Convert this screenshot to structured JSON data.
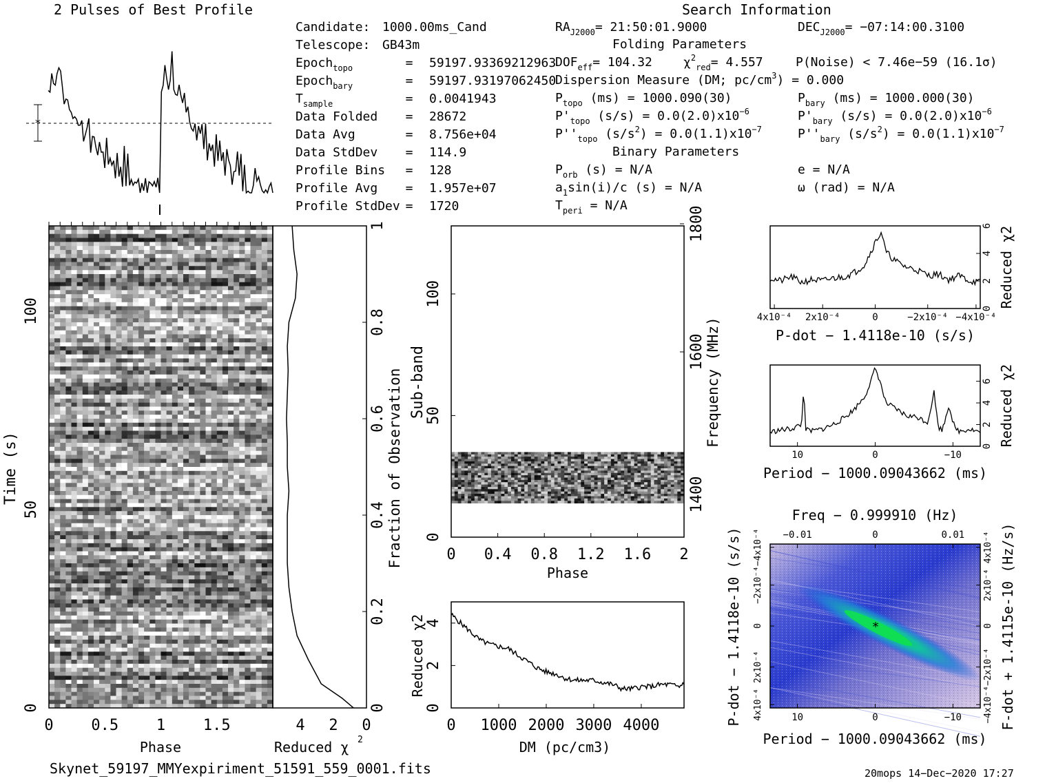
{
  "profile": {
    "title": "2 Pulses of Best Profile"
  },
  "info": {
    "heading": "Search Information",
    "left": [
      {
        "label": "Candidate:",
        "eq": "",
        "value": "1000.00ms_Cand",
        "sub": ""
      },
      {
        "label": "Telescope:",
        "eq": "",
        "value": "GB43m",
        "sub": ""
      },
      {
        "label": "Epoch",
        "sub": "topo",
        "eq": "=",
        "value": "59197.93369212963"
      },
      {
        "label": "Epoch",
        "sub": "bary",
        "eq": "=",
        "value": "59197.93197062450"
      },
      {
        "label": "T",
        "sub": "sample",
        "eq": "=",
        "value": "0.0041943"
      },
      {
        "label": "Data Folded",
        "sub": "",
        "eq": "=",
        "value": "28672"
      },
      {
        "label": "Data Avg",
        "sub": "",
        "eq": "=",
        "value": "8.756e+04"
      },
      {
        "label": "Data StdDev",
        "sub": "",
        "eq": "=",
        "value": "114.9"
      },
      {
        "label": "Profile Bins",
        "sub": "",
        "eq": "=",
        "value": "128"
      },
      {
        "label": "Profile Avg",
        "sub": "",
        "eq": "=",
        "value": "1.957e+07"
      },
      {
        "label": "Profile StdDev",
        "sub": "",
        "eq": "=",
        "value": "1720"
      }
    ],
    "ra": {
      "label": "RA",
      "sub": "J2000",
      "value": "= 21:50:01.9000"
    },
    "dec": {
      "label": "DEC",
      "sub": "J2000",
      "value": "= −07:14:00.3100"
    },
    "folding_heading": "Folding Parameters",
    "dof": {
      "label": "DOF",
      "sub": "eff",
      "value": "= 104.32"
    },
    "chi": {
      "label": "χ",
      "sup": "2",
      "sub": "red",
      "value": "= 4.557"
    },
    "pnoise": "P(Noise) < 7.46e−59   (16.1σ)",
    "dm_line": {
      "pre": "Dispersion Measure (DM; pc/cm",
      "sup": "3",
      "post": ") = 0.000"
    },
    "ptopo": {
      "label": "P",
      "sub": "topo",
      "unit": " (ms) = ",
      "value": "1000.090(30)"
    },
    "pbary": {
      "label": "P",
      "sub": "bary",
      "unit": " (ms) = ",
      "value": "1000.000(30)"
    },
    "pdtopo": {
      "label": "P'",
      "sub": "topo",
      "unit": " (s/s) = ",
      "value": "0.0(2.0)x10",
      "exp": "−6"
    },
    "pdbary": {
      "label": "P'",
      "sub": "bary",
      "unit": " (s/s) = ",
      "value": "0.0(2.0)x10",
      "exp": "−6"
    },
    "pddtopo": {
      "label": "P''",
      "sub": "topo",
      "unit": " (s/s",
      "unitsup": "2",
      "unitpost": ") = ",
      "value": "0.0(1.1)x10",
      "exp": "−7"
    },
    "pddbary": {
      "label": "P''",
      "sub": "bary",
      "unit": " (s/s",
      "unitsup": "2",
      "unitpost": ") = ",
      "value": "0.0(1.1)x10",
      "exp": "−7"
    },
    "binary_heading": "Binary Parameters",
    "porb": {
      "label": "P",
      "sub": "orb",
      "value": " (s) = N/A"
    },
    "e_line": "e = N/A",
    "a1": {
      "pre": "a",
      "sub": "1",
      "post": "sin(i)/c (s) = N/A"
    },
    "omega": "ω (rad) = N/A",
    "tperi": {
      "label": "T",
      "sub": "peri",
      "value": " = N/A"
    }
  },
  "footer": {
    "filename": "Skynet_59197_MMYexpiriment_51591_559_0001.fits",
    "stamp": "20mops 14−Dec−2020 17:27"
  },
  "colors": {
    "ink": "#000000",
    "grid_bg": "#ffffff"
  },
  "chart_data": [
    {
      "type": "line",
      "name": "profile",
      "xlabel": "",
      "ylabel": "",
      "x_range": [
        0,
        2
      ],
      "note_bins": 128,
      "values": [
        0.62,
        0.6,
        0.78,
        0.7,
        0.66,
        0.72,
        0.82,
        0.68,
        0.63,
        0.55,
        0.6,
        0.52,
        0.48,
        0.55,
        0.45,
        0.5,
        0.42,
        0.46,
        0.4,
        0.44,
        0.36,
        0.42,
        0.33,
        0.38,
        0.3,
        0.35,
        0.27,
        0.32,
        0.24,
        0.3,
        0.22,
        0.28,
        0.2,
        0.26,
        0.18,
        0.25,
        0.16,
        0.22,
        0.14,
        0.2,
        0.12,
        0.18,
        0.1,
        0.22,
        0.08,
        0.18,
        0.05,
        0.12,
        0.03,
        0.08,
        0.02,
        0.06,
        0.04,
        0.1,
        0.02,
        0.15,
        0.05,
        0.08,
        0.03,
        0.02,
        0.0,
        0.06,
        0.1,
        0.0,
        0.62,
        0.6,
        0.78,
        0.7,
        0.66,
        0.72,
        0.82,
        0.68,
        0.63,
        0.55,
        0.6,
        0.52,
        0.48,
        0.55,
        0.45,
        0.5,
        0.42,
        0.46,
        0.4,
        0.44,
        0.36,
        0.42,
        0.33,
        0.38,
        0.3,
        0.35,
        0.27,
        0.32,
        0.24,
        0.3,
        0.22,
        0.28,
        0.2,
        0.26,
        0.18,
        0.25,
        0.16,
        0.22,
        0.14,
        0.2,
        0.12,
        0.18,
        0.1,
        0.22,
        0.08,
        0.18,
        0.05,
        0.12,
        0.03,
        0.08,
        0.02,
        0.06,
        0.04,
        0.1,
        0.02,
        0.15,
        0.05,
        0.08,
        0.03,
        0.02,
        0.0,
        0.06,
        0.1,
        0.0
      ]
    },
    {
      "type": "heatmap",
      "name": "time-phase",
      "xlabel": "Phase",
      "ylabel": "Time (s)",
      "x_ticks": [
        "0",
        "0.5",
        "1",
        "1.5"
      ],
      "x_range": [
        0,
        2
      ],
      "y_ticks": [
        "0",
        "50",
        "100"
      ],
      "y_range": [
        0,
        120
      ],
      "right_label": "Fraction of Observation",
      "right_ticks": [
        "0",
        "0.2",
        "0.4",
        "0.6",
        "0.8",
        "1"
      ]
    },
    {
      "type": "line",
      "name": "time-chi2",
      "xlabel": "Reduced χ",
      "xlabel_sup": "2",
      "x_ticks": [
        "4",
        "2",
        "0"
      ],
      "x_range": [
        5.8,
        0
      ],
      "y_range": [
        0,
        1
      ],
      "y": [
        0,
        0.02,
        0.05,
        0.1,
        0.15,
        0.2,
        0.25,
        0.3,
        0.35,
        0.4,
        0.45,
        0.5,
        0.55,
        0.6,
        0.65,
        0.7,
        0.75,
        0.8,
        0.85,
        0.9,
        0.95,
        1.0
      ],
      "x": [
        0.8,
        1.5,
        2.8,
        3.6,
        4.3,
        4.6,
        4.8,
        4.9,
        4.9,
        4.9,
        4.8,
        4.9,
        4.9,
        4.95,
        4.9,
        4.85,
        4.9,
        4.8,
        4.4,
        4.3,
        4.5,
        4.6
      ]
    },
    {
      "type": "heatmap",
      "name": "subband-phase",
      "xlabel": "Phase",
      "ylabel": "Sub-band",
      "x_ticks": [
        "0",
        "0.4",
        "0.8",
        "1.2",
        "1.6",
        "2"
      ],
      "x_range": [
        0,
        2
      ],
      "y_ticks": [
        "0",
        "50",
        "100"
      ],
      "y_range": [
        0,
        128
      ],
      "right_label": "Frequency (MHz)",
      "right_ticks": [
        "1400",
        "1600",
        "1800"
      ],
      "filled_band": [
        14,
        35
      ]
    },
    {
      "type": "line",
      "name": "dm-chi2",
      "xlabel": "DM (pc/cm",
      "xlabel_sup": "3",
      "xlabel_post": ")",
      "ylabel": "Reduced χ",
      "ylabel_sup": "2",
      "x_ticks": [
        "0",
        "1000",
        "2000",
        "3000",
        "4000"
      ],
      "x_range": [
        0,
        4900
      ],
      "y_ticks": [
        "0",
        "2",
        "4"
      ],
      "y_range": [
        0,
        5
      ],
      "x": [
        0,
        200,
        400,
        600,
        800,
        1000,
        1200,
        1400,
        1600,
        1800,
        2000,
        2200,
        2400,
        2600,
        2800,
        3000,
        3200,
        3400,
        3600,
        3800,
        4000,
        4200,
        4400,
        4600,
        4800,
        4900
      ],
      "y": [
        4.4,
        4.0,
        3.6,
        3.2,
        3.0,
        2.9,
        2.8,
        2.5,
        2.2,
        1.9,
        1.7,
        1.6,
        1.4,
        1.3,
        1.3,
        1.3,
        1.2,
        1.1,
        0.9,
        0.9,
        1.0,
        1.0,
        1.1,
        1.1,
        1.0,
        1.2
      ]
    },
    {
      "type": "line",
      "name": "pdot-chi2",
      "xlabel": "P-dot − 1.4118e-10 (s/s)",
      "ylabel": "Reduced χ",
      "ylabel_sup": "2",
      "x_ticks": [
        "4x10⁻⁴",
        "2x10⁻⁴",
        "0",
        "−2x10⁻⁴",
        "−4x10⁻⁴"
      ],
      "y_ticks": [
        "0",
        "2",
        "4",
        "6"
      ],
      "y_range": [
        0,
        6
      ],
      "x": [
        0,
        0.05,
        0.1,
        0.15,
        0.2,
        0.25,
        0.3,
        0.35,
        0.4,
        0.45,
        0.5,
        0.53,
        0.55,
        0.6,
        0.65,
        0.7,
        0.75,
        0.8,
        0.85,
        0.9,
        0.95,
        1.0
      ],
      "y": [
        2.2,
        2.0,
        2.3,
        1.9,
        2.1,
        2.0,
        2.2,
        2.3,
        2.6,
        3.2,
        4.8,
        5.6,
        4.1,
        3.4,
        3.0,
        2.8,
        2.4,
        2.5,
        2.1,
        2.4,
        2.0,
        1.9
      ]
    },
    {
      "type": "line",
      "name": "period-chi2",
      "xlabel": "Period − 1000.09043662 (ms)",
      "ylabel": "Reduced χ",
      "ylabel_sup": "2",
      "x_ticks": [
        "10",
        "0",
        "−10"
      ],
      "y_ticks": [
        "0",
        "2",
        "4",
        "6"
      ],
      "y_range": [
        0,
        7.5
      ],
      "x": [
        0,
        0.05,
        0.1,
        0.15,
        0.16,
        0.17,
        0.2,
        0.25,
        0.3,
        0.35,
        0.4,
        0.45,
        0.48,
        0.5,
        0.52,
        0.55,
        0.6,
        0.65,
        0.7,
        0.75,
        0.78,
        0.8,
        0.82,
        0.85,
        0.88,
        0.9,
        0.95,
        1.0
      ],
      "y": [
        1.3,
        1.5,
        1.6,
        2.0,
        5.5,
        1.5,
        1.4,
        1.6,
        2.0,
        2.6,
        3.4,
        4.6,
        6.0,
        7.2,
        6.2,
        4.0,
        3.4,
        2.8,
        2.7,
        2.2,
        5.0,
        1.8,
        1.5,
        3.8,
        1.6,
        1.4,
        1.6,
        1.3
      ]
    },
    {
      "type": "heatmap",
      "name": "pdot-period",
      "title": "Freq − 0.999910 (Hz)",
      "xlabel": "Period − 1000.09043662 (ms)",
      "ylabel": "P-dot − 1.4118e-10 (s/s)",
      "right_label": "F-dot + 1.4115e-10 (Hz/s)",
      "x_ticks": [
        "10",
        "0",
        "−10"
      ],
      "top_ticks": [
        "−0.01",
        "0",
        "0.01"
      ],
      "y_ticks": [
        "4x10⁻⁴",
        "2x10⁻⁴",
        "0",
        "−2x10⁻⁴",
        "−4x10⁻⁴"
      ],
      "right_ticks": [
        "−4x10⁻⁴",
        "−2x10⁻⁴",
        "0",
        "2x10⁻⁴",
        "4x10⁻⁴"
      ]
    }
  ]
}
